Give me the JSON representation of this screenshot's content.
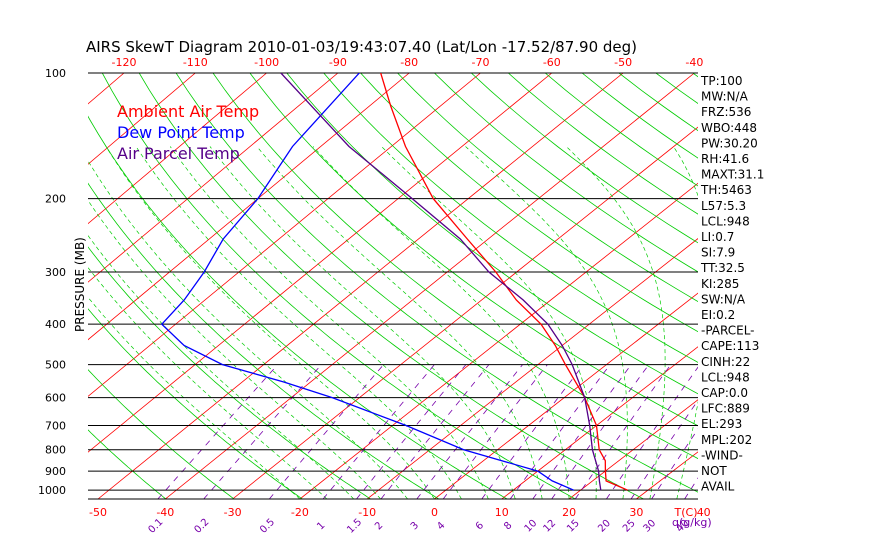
{
  "title": "AIRS SkewT Diagram 2010-01-03/19:43:07.40 (Lat/Lon -17.52/87.90 deg)",
  "y_axis_label": "PRESSURE (MB)",
  "bottom_unit_label": "T(C)",
  "mixing_ratio_unit_label": "q(g/kg)",
  "legend": [
    {
      "label": "Ambient Air Temp",
      "color": "#ff0000"
    },
    {
      "label": "Dew Point Temp",
      "color": "#0000ff"
    },
    {
      "label": "Air Parcel Temp",
      "color": "#550088"
    }
  ],
  "indices": [
    "TP:100",
    "MW:N/A",
    "FRZ:536",
    "WBO:448",
    "PW:30.20",
    "RH:41.6",
    "MAXT:31.1",
    "TH:5463",
    "L57:5.3",
    "LCL:948",
    "LI:0.7",
    "SI:7.9",
    "TT:32.5",
    "KI:285",
    "SW:N/A",
    "EI:0.2",
    "-PARCEL-",
    "CAPE:113",
    "CINH:22",
    "LCL:948",
    "CAP:0.0",
    "LFC:889",
    "EL:293",
    "MPL:202",
    "-WIND-",
    "NOT",
    "AVAIL"
  ],
  "colors": {
    "isotherm": "#ff0000",
    "dry_adiabat": "#00cc00",
    "moist_adiabat": "#00cc00",
    "mixing_ratio": "#7700aa",
    "isobar": "#000000",
    "top_ticks": "#ff0000",
    "bottom_ticks": "#ff0000"
  },
  "chart_data": {
    "type": "line",
    "y_scale": "log-pressure",
    "pressure_ticks_mb": [
      100,
      200,
      300,
      400,
      500,
      600,
      700,
      800,
      900,
      1000
    ],
    "top_temp_ticks_c": [
      -120,
      -110,
      -100,
      -90,
      -80,
      -70,
      -60,
      -50,
      -40
    ],
    "bottom_temp_ticks_c": [
      -50,
      -40,
      -30,
      -20,
      -10,
      0,
      10,
      20,
      30,
      40
    ],
    "mixing_ratio_ticks_gkg": [
      "0.1",
      "0.2",
      "0.5",
      "1",
      "1.5",
      "2",
      "3",
      "4",
      "6",
      "8",
      "10",
      "12",
      "15",
      "20",
      "25",
      "30",
      "40"
    ],
    "series": [
      {
        "name": "Ambient Air Temp",
        "pressure_mb": [
          100,
          120,
          150,
          200,
          250,
          300,
          350,
          400,
          450,
          500,
          600,
          700,
          800,
          850,
          900,
          950,
          1000
        ],
        "temp_c": [
          -84,
          -77,
          -68,
          -55,
          -43,
          -33,
          -25,
          -17,
          -11,
          -6,
          3,
          10,
          15,
          18,
          20,
          22,
          27
        ]
      },
      {
        "name": "Dew Point Temp",
        "pressure_mb": [
          100,
          150,
          200,
          250,
          300,
          350,
          400,
          450,
          500,
          550,
          600,
          700,
          800,
          900,
          950,
          1000
        ],
        "temp_c": [
          -87,
          -84,
          -80,
          -78,
          -75,
          -73,
          -72,
          -65,
          -56,
          -44,
          -34,
          -18,
          -5,
          10,
          14,
          19
        ]
      },
      {
        "name": "Air Parcel Temp",
        "pressure_mb": [
          100,
          150,
          200,
          250,
          300,
          350,
          400,
          450,
          500,
          600,
          700,
          800,
          900,
          950,
          1000
        ],
        "temp_c": [
          -98,
          -76,
          -58,
          -44,
          -34,
          -24,
          -16,
          -10,
          -5,
          3,
          9,
          14,
          19,
          21,
          23
        ]
      }
    ]
  }
}
